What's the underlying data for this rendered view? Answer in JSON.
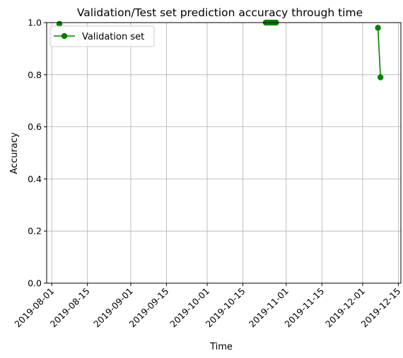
{
  "chart_data": {
    "type": "line",
    "title": "Validation/Test set prediction accuracy through time",
    "xlabel": "Time",
    "ylabel": "Accuracy",
    "ylim": [
      0.0,
      1.0
    ],
    "xlim": [
      "2019-07-30",
      "2019-12-16"
    ],
    "grid": true,
    "legend_position": "top-left",
    "x_ticks": [
      {
        "date": "2019-08-01",
        "label": "2019-08-01"
      },
      {
        "date": "2019-08-15",
        "label": "2019-08-15"
      },
      {
        "date": "2019-09-01",
        "label": "2019-09-01"
      },
      {
        "date": "2019-09-15",
        "label": "2019-09-15"
      },
      {
        "date": "2019-10-01",
        "label": "2019-10-01"
      },
      {
        "date": "2019-10-15",
        "label": "2019-10-15"
      },
      {
        "date": "2019-11-01",
        "label": "2019-11-01"
      },
      {
        "date": "2019-11-15",
        "label": "2019-11-15"
      },
      {
        "date": "2019-12-01",
        "label": "2019-12-01"
      },
      {
        "date": "2019-12-15",
        "label": "2019-12-15"
      }
    ],
    "y_ticks": [
      {
        "value": 0.0,
        "label": "0.0"
      },
      {
        "value": 0.2,
        "label": "0.2"
      },
      {
        "value": 0.4,
        "label": "0.4"
      },
      {
        "value": 0.6,
        "label": "0.6"
      },
      {
        "value": 0.8,
        "label": "0.8"
      },
      {
        "value": 1.0,
        "label": "1.0"
      }
    ],
    "series": [
      {
        "name": "Validation set",
        "color": "#008000",
        "marker": "circle",
        "segments": [
          {
            "x": [
              "2019-08-04"
            ],
            "y": [
              0.995
            ]
          },
          {
            "x": [
              "2019-10-24",
              "2019-10-25",
              "2019-10-26",
              "2019-10-27",
              "2019-10-28"
            ],
            "y": [
              1.0,
              1.0,
              1.0,
              1.0,
              1.0
            ]
          },
          {
            "x": [
              "2019-12-07",
              "2019-12-08"
            ],
            "y": [
              0.98,
              0.79
            ]
          }
        ]
      }
    ]
  }
}
